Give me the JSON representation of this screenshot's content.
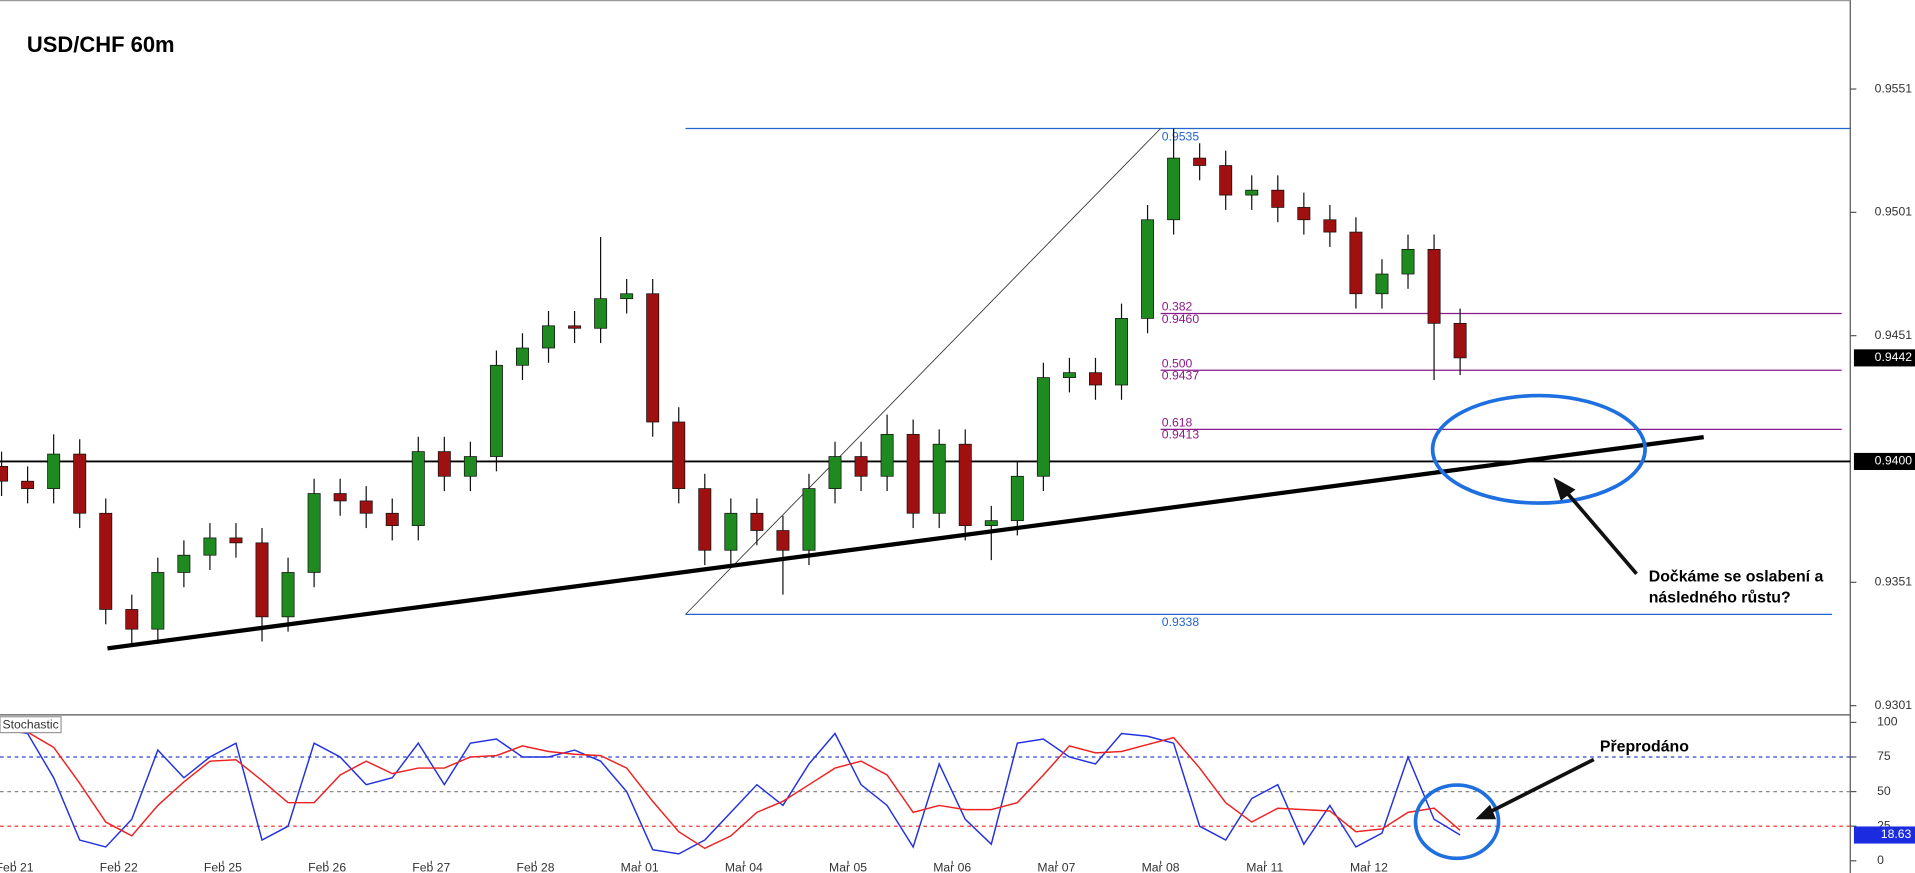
{
  "chart_data": [
    {
      "type": "candlestick",
      "title": "USD/CHF 60m",
      "x": [
        -0.125,
        0.125,
        0.375,
        0.625,
        0.875,
        1.125,
        1.375,
        1.625,
        1.875,
        2.125,
        2.375,
        2.625,
        2.875,
        3.125,
        3.375,
        3.625,
        3.875,
        4.125,
        4.375,
        4.625,
        4.875,
        5.125,
        5.375,
        5.625,
        5.875,
        6.125,
        6.375,
        6.625,
        6.875,
        7.125,
        7.375,
        7.625,
        7.875,
        8.125,
        8.375,
        8.625,
        8.875,
        9.125,
        9.375,
        9.625,
        9.875,
        10.125,
        10.375,
        10.625,
        10.875,
        11.125,
        11.375,
        11.625,
        11.875,
        12.125,
        12.375,
        12.625,
        12.875,
        13.125,
        13.375,
        13.625,
        13.875
      ],
      "open": [
        0.9398,
        0.9392,
        0.9389,
        0.9403,
        0.9379,
        0.934,
        0.9332,
        0.9355,
        0.9362,
        0.9369,
        0.9367,
        0.9337,
        0.9355,
        0.9387,
        0.9384,
        0.9379,
        0.9374,
        0.9404,
        0.9394,
        0.9402,
        0.9439,
        0.9446,
        0.9455,
        0.9454,
        0.9466,
        0.9468,
        0.9416,
        0.9389,
        0.9364,
        0.9379,
        0.9372,
        0.9364,
        0.9389,
        0.9402,
        0.9394,
        0.9411,
        0.9379,
        0.9407,
        0.9374,
        0.9376,
        0.9394,
        0.9434,
        0.9436,
        0.9431,
        0.9458,
        0.9498,
        0.9523,
        0.952,
        0.9508,
        0.951,
        0.9503,
        0.9498,
        0.9493,
        0.9468,
        0.9476,
        0.9486,
        0.9456
      ],
      "high": [
        0.9404,
        0.9398,
        0.9411,
        0.9409,
        0.9385,
        0.9346,
        0.9361,
        0.9368,
        0.9375,
        0.9375,
        0.9373,
        0.9361,
        0.9393,
        0.9393,
        0.939,
        0.9385,
        0.941,
        0.941,
        0.9408,
        0.9445,
        0.9452,
        0.9461,
        0.9461,
        0.9491,
        0.9474,
        0.9474,
        0.9422,
        0.9395,
        0.9385,
        0.9385,
        0.9378,
        0.9395,
        0.9408,
        0.9408,
        0.9419,
        0.9417,
        0.9413,
        0.9413,
        0.9382,
        0.94,
        0.944,
        0.9442,
        0.9442,
        0.9464,
        0.9504,
        0.9535,
        0.9529,
        0.9526,
        0.9516,
        0.9516,
        0.9509,
        0.9504,
        0.9499,
        0.9482,
        0.9492,
        0.9492,
        0.9462
      ],
      "low": [
        0.9386,
        0.9383,
        0.9383,
        0.9373,
        0.9334,
        0.9325,
        0.9326,
        0.9349,
        0.9356,
        0.9361,
        0.9327,
        0.9331,
        0.9349,
        0.9378,
        0.9373,
        0.9368,
        0.9368,
        0.9388,
        0.9388,
        0.9396,
        0.9433,
        0.944,
        0.9448,
        0.9448,
        0.946,
        0.941,
        0.9383,
        0.9358,
        0.9358,
        0.9366,
        0.9346,
        0.9358,
        0.9383,
        0.9388,
        0.9388,
        0.9373,
        0.9373,
        0.9368,
        0.936,
        0.937,
        0.9388,
        0.9428,
        0.9425,
        0.9425,
        0.9452,
        0.9492,
        0.9514,
        0.9502,
        0.9502,
        0.9497,
        0.9492,
        0.9487,
        0.9462,
        0.9462,
        0.947,
        0.9433,
        0.9435
      ],
      "close": [
        0.9392,
        0.9389,
        0.9403,
        0.9379,
        0.934,
        0.9332,
        0.9355,
        0.9362,
        0.9369,
        0.9367,
        0.9337,
        0.9355,
        0.9387,
        0.9384,
        0.9379,
        0.9374,
        0.9404,
        0.9394,
        0.9402,
        0.9439,
        0.9446,
        0.9455,
        0.9454,
        0.9466,
        0.9468,
        0.9416,
        0.9389,
        0.9364,
        0.9379,
        0.9372,
        0.9364,
        0.9389,
        0.9402,
        0.9394,
        0.9411,
        0.9379,
        0.9407,
        0.9374,
        0.9376,
        0.9394,
        0.9434,
        0.9436,
        0.9431,
        0.9458,
        0.9498,
        0.9523,
        0.952,
        0.9508,
        0.951,
        0.9503,
        0.9498,
        0.9493,
        0.9468,
        0.9476,
        0.9486,
        0.9456,
        0.9442
      ],
      "up_color": "#1f8a1f",
      "down_color": "#a01010",
      "xlim": [
        -0.14,
        17.62
      ],
      "ylim": [
        0.92975,
        0.95871
      ],
      "yticks": [
        0.9301,
        0.9351,
        0.9451,
        0.9501,
        0.9551
      ],
      "current_price": 0.9442,
      "hline": {
        "value": 0.94,
        "label": "0.9400"
      },
      "fib": {
        "start": 6.44,
        "end": 17.62,
        "level_start": 11.0,
        "color": "#2266cc",
        "level_color": "#8b1a8b",
        "high": 0.9535,
        "low": {
          "value": 0.9338,
          "label": "0.9338"
        },
        "levels": [
          {
            "ratio": "0.382",
            "price": {
              "value": 0.946,
              "label": "0.9460"
            }
          },
          {
            "ratio": "0.500",
            "price": 0.9437
          },
          {
            "ratio": "0.618",
            "price": 0.9413
          }
        ]
      },
      "annotation": [
        "Dočkáme se oslabení a",
        "následného růstu?"
      ]
    },
    {
      "type": "line",
      "title": "Stochastic",
      "x": [
        -0.125,
        0.125,
        0.375,
        0.625,
        0.875,
        1.125,
        1.375,
        1.625,
        1.875,
        2.125,
        2.375,
        2.625,
        2.875,
        3.125,
        3.375,
        3.625,
        3.875,
        4.125,
        4.375,
        4.625,
        4.875,
        5.125,
        5.375,
        5.625,
        5.875,
        6.125,
        6.375,
        6.625,
        6.875,
        7.125,
        7.375,
        7.625,
        7.875,
        8.125,
        8.375,
        8.625,
        8.875,
        9.125,
        9.375,
        9.625,
        9.875,
        10.125,
        10.375,
        10.625,
        10.875,
        11.125,
        11.375,
        11.625,
        11.875,
        12.125,
        12.375,
        12.625,
        12.875,
        13.125,
        13.375,
        13.625,
        13.875
      ],
      "series": [
        {
          "color": "#2233dd",
          "values": [
            95,
            92,
            60,
            15,
            10,
            30,
            80,
            60,
            75,
            85,
            15,
            25,
            85,
            75,
            55,
            60,
            85,
            55,
            85,
            88,
            75,
            75,
            80,
            72,
            50,
            8,
            5,
            15,
            35,
            55,
            40,
            70,
            92,
            55,
            40,
            10,
            70,
            30,
            12,
            85,
            88,
            75,
            70,
            92,
            90,
            85,
            25,
            15,
            45,
            55,
            12,
            40,
            10,
            20,
            75,
            30,
            18.63
          ]
        },
        {
          "color": "#ee2222",
          "values": [
            93,
            93,
            82,
            56,
            28,
            18,
            40,
            57,
            72,
            73,
            58,
            42,
            42,
            62,
            72,
            63,
            67,
            67,
            75,
            76,
            83,
            79,
            77,
            76,
            67,
            43,
            21,
            9,
            18,
            35,
            43,
            55,
            67,
            72,
            62,
            35,
            40,
            37,
            37,
            42,
            62,
            83,
            78,
            79,
            84,
            89,
            67,
            42,
            28,
            38,
            37,
            36,
            21,
            23,
            35,
            38,
            22
          ]
        }
      ],
      "current_value": 18.63,
      "xlim": [
        -0.14,
        17.62
      ],
      "ylim": [
        0,
        105
      ],
      "yticks": [
        0,
        25,
        50,
        75,
        100
      ],
      "levels": [
        {
          "value": 75,
          "color": "#3344cc"
        },
        {
          "value": 50,
          "color": "#888888"
        },
        {
          "value": 25,
          "color": "#ee2222"
        }
      ],
      "xticks": [
        {
          "value": 0,
          "label": "Feb 21"
        },
        {
          "value": 1,
          "label": "Feb 22"
        },
        {
          "value": 2,
          "label": "Feb 25"
        },
        {
          "value": 3,
          "label": "Feb 26"
        },
        {
          "value": 4,
          "label": "Feb 27"
        },
        {
          "value": 5,
          "label": "Feb 28"
        },
        {
          "value": 6,
          "label": "Mar 01"
        },
        {
          "value": 7,
          "label": "Mar 04"
        },
        {
          "value": 8,
          "label": "Mar 05"
        },
        {
          "value": 9,
          "label": "Mar 06"
        },
        {
          "value": 10,
          "label": "Mar 07"
        },
        {
          "value": 11,
          "label": "Mar 08"
        },
        {
          "value": 12,
          "label": "Mar 11"
        },
        {
          "value": 13,
          "label": "Mar 12"
        }
      ],
      "annotation": "Přeprodáno"
    }
  ]
}
